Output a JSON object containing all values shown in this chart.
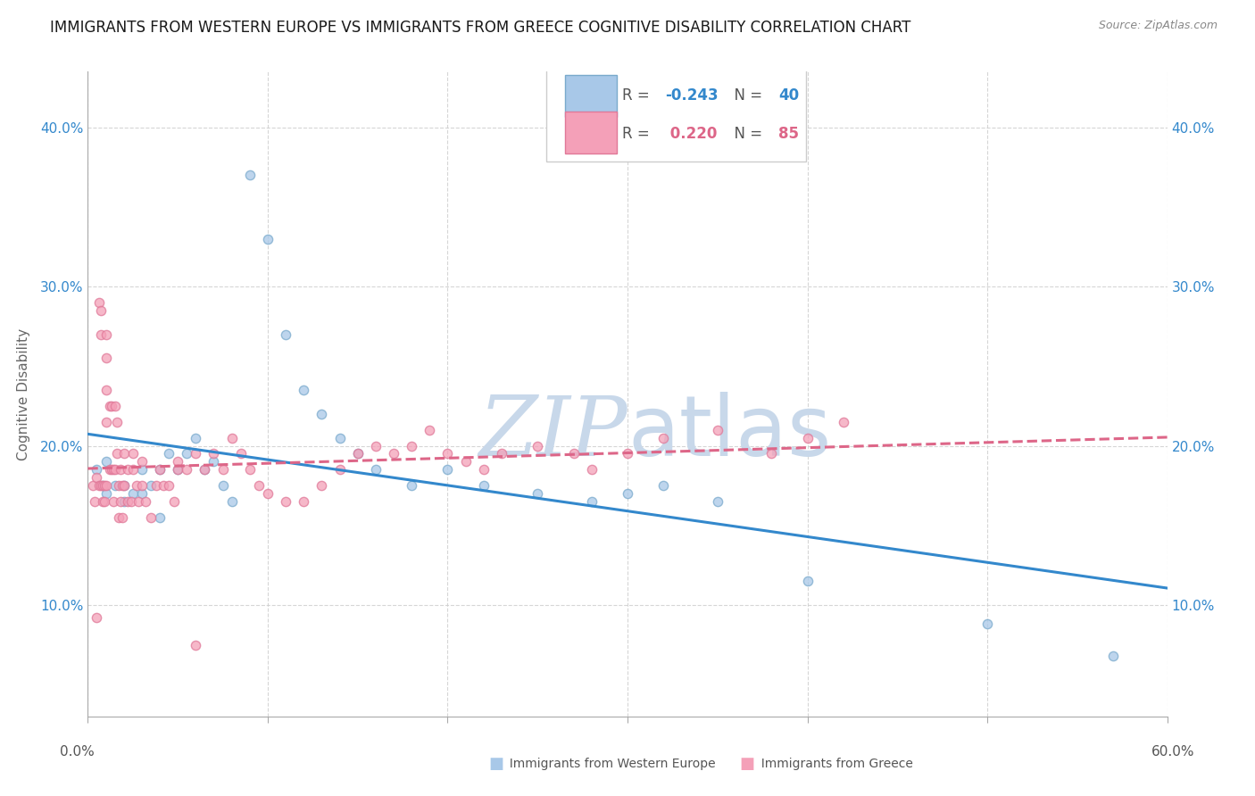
{
  "title": "IMMIGRANTS FROM WESTERN EUROPE VS IMMIGRANTS FROM GREECE COGNITIVE DISABILITY CORRELATION CHART",
  "source": "Source: ZipAtlas.com",
  "ylabel": "Cognitive Disability",
  "yticks": [
    0.1,
    0.2,
    0.3,
    0.4
  ],
  "ytick_labels": [
    "10.0%",
    "20.0%",
    "30.0%",
    "40.0%"
  ],
  "xlim": [
    0.0,
    0.6
  ],
  "ylim": [
    0.03,
    0.435
  ],
  "blue_fill": "#a8c8e8",
  "pink_fill": "#f4a0b8",
  "blue_edge": "#7aaacc",
  "pink_edge": "#e07898",
  "blue_line": "#3388cc",
  "pink_line": "#dd6688",
  "grid_color": "#cccccc",
  "watermark_color": "#c8d8ea",
  "blue_scatter_x": [
    0.005,
    0.008,
    0.01,
    0.01,
    0.015,
    0.02,
    0.02,
    0.025,
    0.03,
    0.03,
    0.035,
    0.04,
    0.04,
    0.045,
    0.05,
    0.055,
    0.06,
    0.065,
    0.07,
    0.075,
    0.08,
    0.09,
    0.1,
    0.11,
    0.12,
    0.13,
    0.14,
    0.15,
    0.16,
    0.18,
    0.2,
    0.22,
    0.25,
    0.28,
    0.3,
    0.32,
    0.35,
    0.4,
    0.5,
    0.57
  ],
  "blue_scatter_y": [
    0.185,
    0.175,
    0.19,
    0.17,
    0.175,
    0.175,
    0.165,
    0.17,
    0.185,
    0.17,
    0.175,
    0.185,
    0.155,
    0.195,
    0.185,
    0.195,
    0.205,
    0.185,
    0.19,
    0.175,
    0.165,
    0.37,
    0.33,
    0.27,
    0.235,
    0.22,
    0.205,
    0.195,
    0.185,
    0.175,
    0.185,
    0.175,
    0.17,
    0.165,
    0.17,
    0.175,
    0.165,
    0.115,
    0.088,
    0.068
  ],
  "pink_scatter_x": [
    0.003,
    0.004,
    0.005,
    0.005,
    0.006,
    0.006,
    0.007,
    0.007,
    0.007,
    0.008,
    0.008,
    0.009,
    0.009,
    0.01,
    0.01,
    0.01,
    0.01,
    0.01,
    0.012,
    0.012,
    0.013,
    0.013,
    0.014,
    0.014,
    0.015,
    0.015,
    0.016,
    0.016,
    0.017,
    0.017,
    0.018,
    0.018,
    0.019,
    0.019,
    0.02,
    0.02,
    0.022,
    0.022,
    0.024,
    0.025,
    0.025,
    0.027,
    0.028,
    0.03,
    0.03,
    0.032,
    0.035,
    0.038,
    0.04,
    0.042,
    0.045,
    0.048,
    0.05,
    0.055,
    0.06,
    0.065,
    0.07,
    0.075,
    0.08,
    0.085,
    0.09,
    0.095,
    0.1,
    0.11,
    0.12,
    0.13,
    0.14,
    0.15,
    0.16,
    0.17,
    0.18,
    0.19,
    0.2,
    0.21,
    0.22,
    0.23,
    0.25,
    0.27,
    0.28,
    0.3,
    0.32,
    0.35,
    0.38,
    0.4,
    0.42,
    0.05,
    0.06
  ],
  "pink_scatter_y": [
    0.175,
    0.165,
    0.18,
    0.092,
    0.29,
    0.175,
    0.285,
    0.27,
    0.175,
    0.175,
    0.165,
    0.175,
    0.165,
    0.27,
    0.255,
    0.235,
    0.215,
    0.175,
    0.225,
    0.185,
    0.225,
    0.185,
    0.185,
    0.165,
    0.225,
    0.185,
    0.215,
    0.195,
    0.175,
    0.155,
    0.185,
    0.165,
    0.175,
    0.155,
    0.195,
    0.175,
    0.185,
    0.165,
    0.165,
    0.195,
    0.185,
    0.175,
    0.165,
    0.19,
    0.175,
    0.165,
    0.155,
    0.175,
    0.185,
    0.175,
    0.175,
    0.165,
    0.185,
    0.185,
    0.195,
    0.185,
    0.195,
    0.185,
    0.205,
    0.195,
    0.185,
    0.175,
    0.17,
    0.165,
    0.165,
    0.175,
    0.185,
    0.195,
    0.2,
    0.195,
    0.2,
    0.21,
    0.195,
    0.19,
    0.185,
    0.195,
    0.2,
    0.195,
    0.185,
    0.195,
    0.205,
    0.21,
    0.195,
    0.205,
    0.215,
    0.19,
    0.075
  ]
}
